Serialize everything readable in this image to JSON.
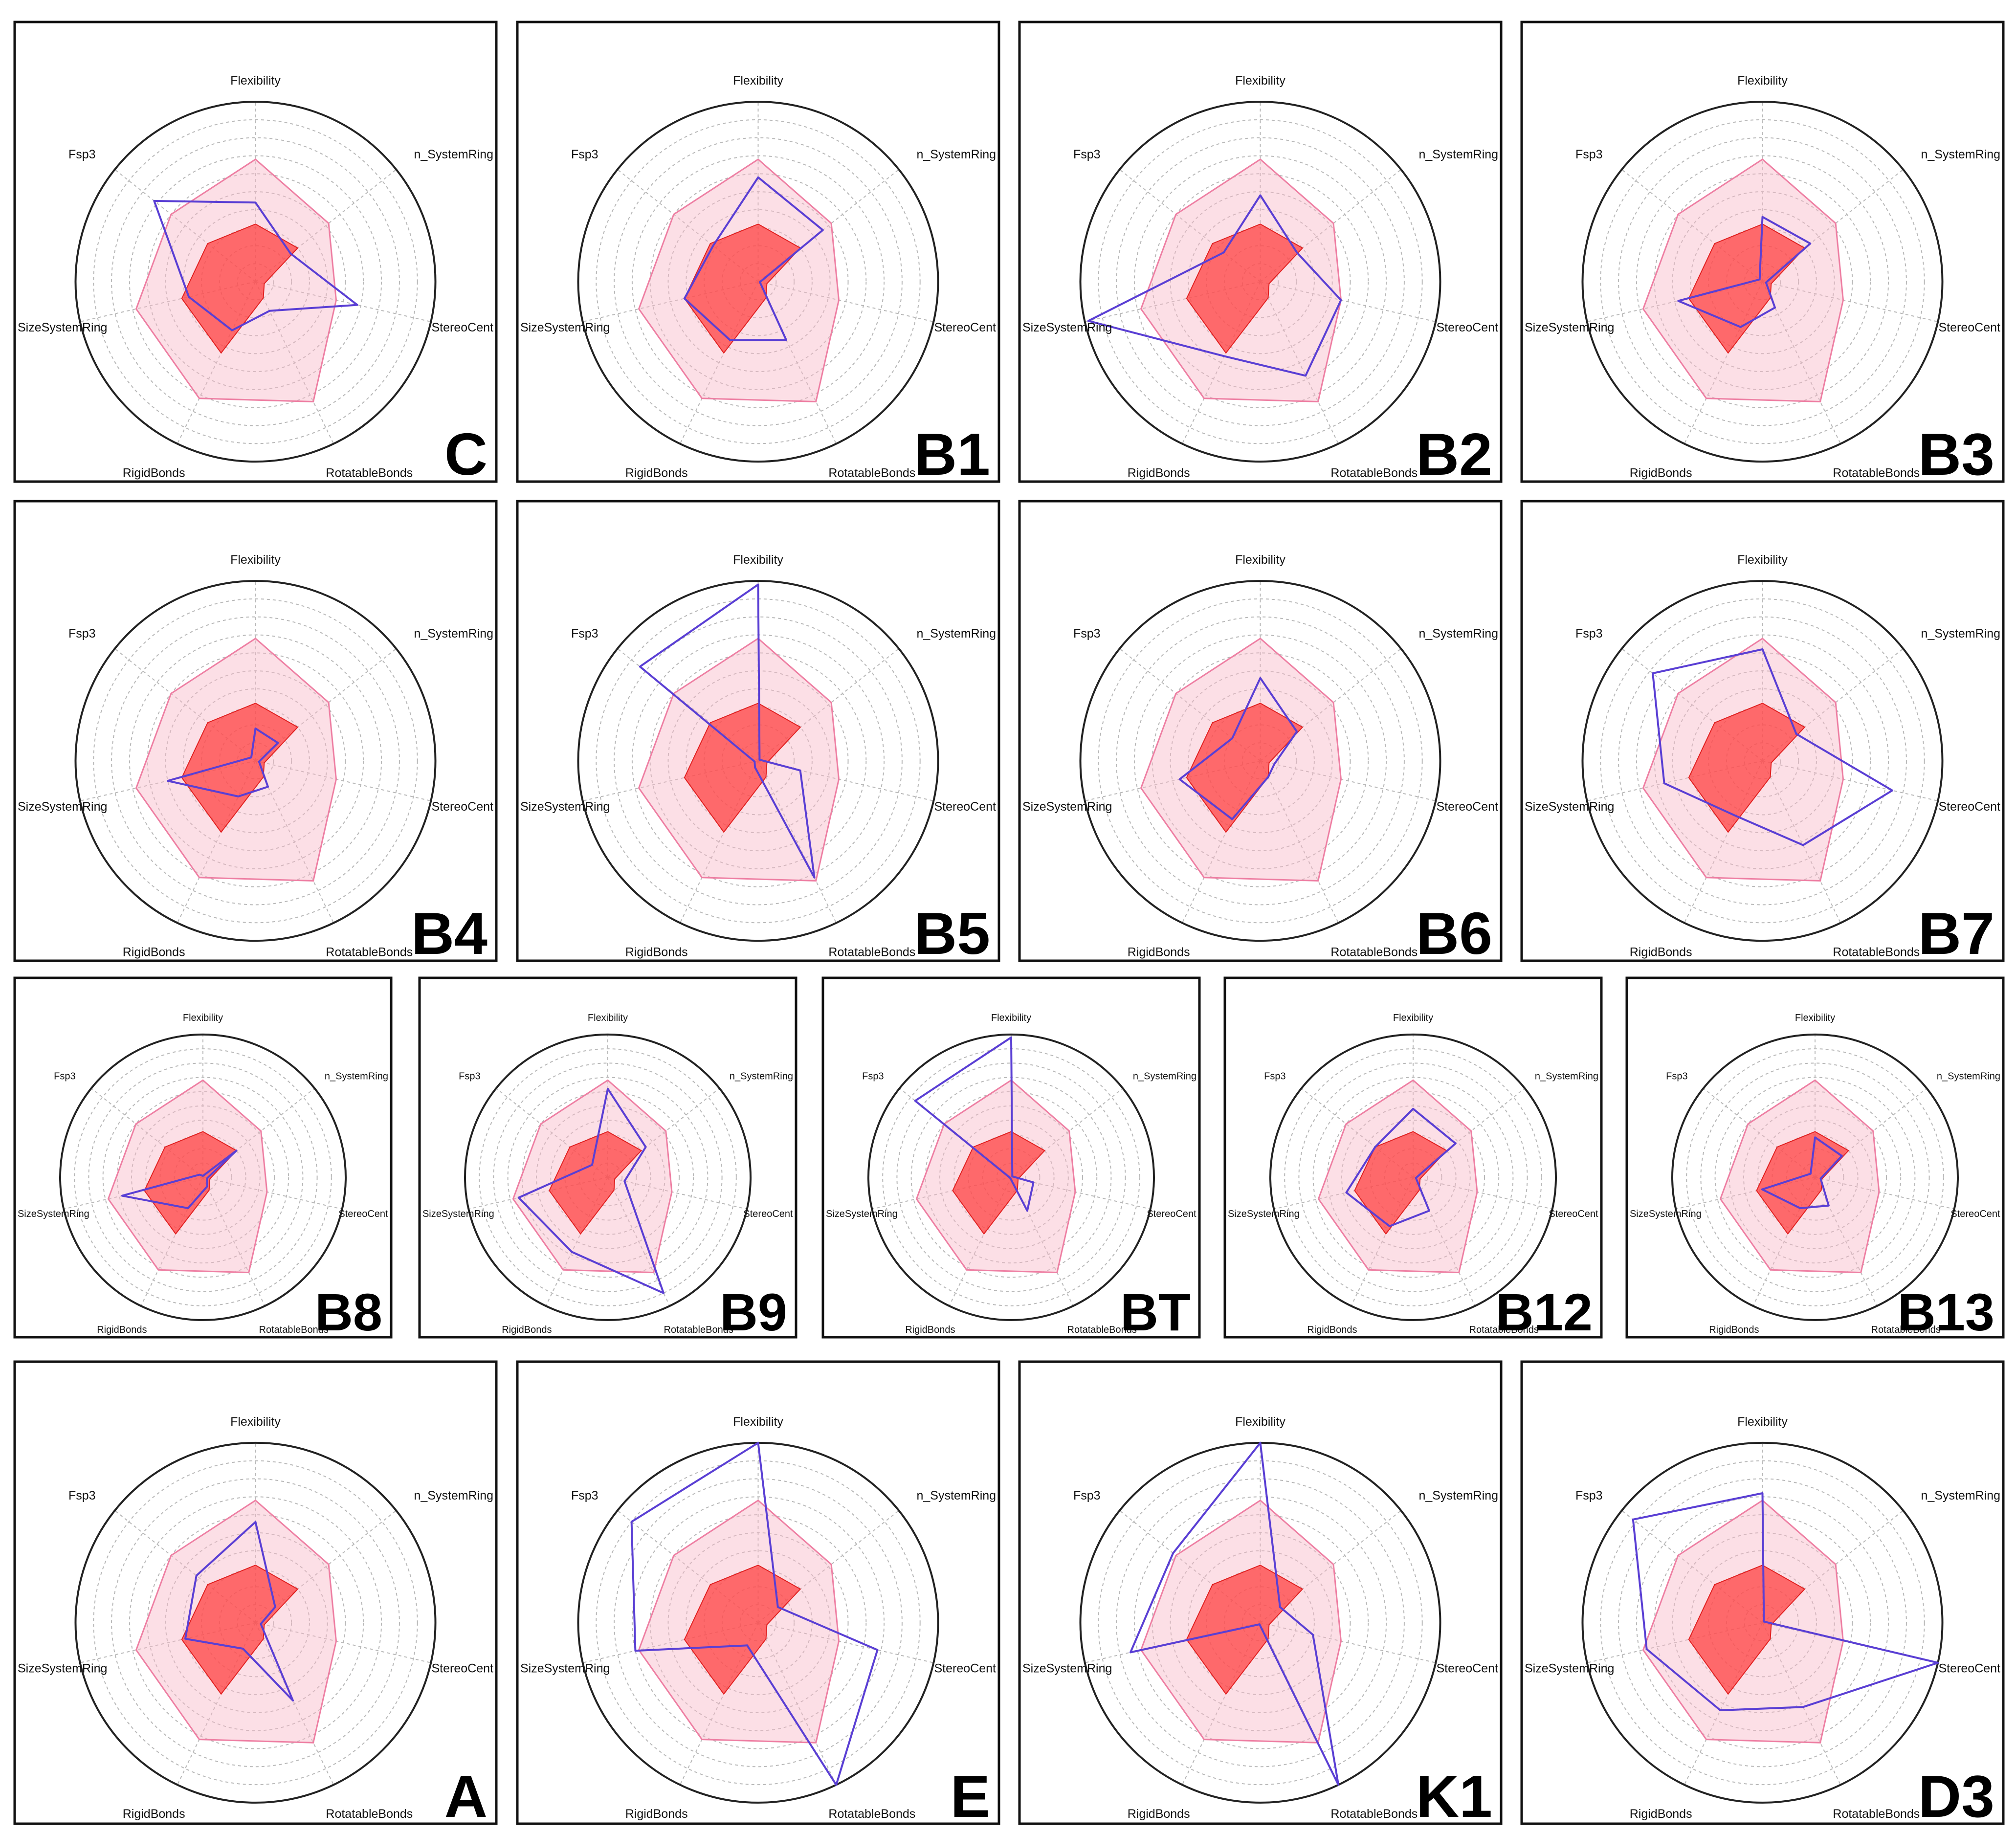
{
  "figure": {
    "description_axes_order": "clockwise from top",
    "colors": {
      "upper_limit_fill": "#f8b7c8",
      "upper_limit_stroke": "#ee7fa3",
      "lower_limit_fill": "#ff3b3b",
      "compound_line": "#5a3fd4",
      "grid": "#b8b8b8",
      "frame": "#111111"
    }
  },
  "chart_data": {
    "type": "radar",
    "axes": [
      "Flexibility",
      "n_SystemRing",
      "StereoCenters",
      "RotatableBonds",
      "RigidBonds",
      "SizeSystemRing",
      "Fsp3"
    ],
    "axis_labels": [
      "Flexibility",
      "n_SystemRing",
      "StereoCent",
      "RotatableBonds",
      "RigidBonds",
      "SizeSystemRing",
      "Fsp3"
    ],
    "rmax": 10,
    "grid_rings": [
      1,
      2,
      3,
      4,
      5,
      6,
      7,
      8,
      9,
      10
    ],
    "upper_limit": [
      6.8,
      5.2,
      4.6,
      7.4,
      7.2,
      6.8,
      6.0
    ],
    "lower_limit": [
      3.2,
      3.0,
      0.5,
      1.0,
      4.4,
      4.2,
      3.4
    ],
    "panels": [
      {
        "label": "C",
        "values": [
          4.4,
          2.5,
          5.8,
          1.8,
          3.0,
          3.8,
          7.2
        ]
      },
      {
        "label": "B1",
        "values": [
          5.8,
          4.6,
          0.1,
          3.6,
          3.6,
          4.2,
          3.2
        ]
      },
      {
        "label": "B2",
        "values": [
          4.8,
          2.6,
          4.6,
          5.8,
          4.6,
          9.8,
          2.6
        ]
      },
      {
        "label": "B3",
        "values": [
          3.6,
          3.4,
          0.2,
          1.6,
          2.8,
          4.8,
          0.2
        ]
      },
      {
        "label": "B4",
        "values": [
          1.8,
          1.6,
          0.2,
          1.6,
          2.2,
          5.0,
          0.3
        ]
      },
      {
        "label": "B5",
        "values": [
          9.8,
          0.1,
          2.4,
          7.2,
          0.4,
          0.2,
          8.4
        ]
      },
      {
        "label": "B6",
        "values": [
          4.6,
          2.6,
          0.8,
          1.0,
          3.6,
          4.6,
          2.0
        ]
      },
      {
        "label": "B7",
        "values": [
          6.2,
          2.4,
          7.4,
          5.2,
          3.4,
          5.6,
          7.8
        ]
      },
      {
        "label": "B8",
        "values": [
          0.1,
          3.0,
          0.3,
          0.7,
          2.4,
          5.8,
          0.3
        ]
      },
      {
        "label": "B9",
        "values": [
          6.2,
          3.4,
          1.2,
          9.0,
          5.8,
          6.4,
          1.4
        ]
      },
      {
        "label": "BT",
        "values": [
          9.8,
          0.1,
          1.6,
          2.6,
          0.1,
          0.1,
          8.6
        ]
      },
      {
        "label": "B12",
        "values": [
          4.8,
          3.8,
          0.2,
          2.6,
          3.8,
          4.8,
          3.4
        ]
      },
      {
        "label": "B13",
        "values": [
          2.8,
          2.4,
          0.4,
          2.2,
          2.4,
          3.8,
          0.4
        ]
      },
      {
        "label": "A",
        "values": [
          5.6,
          1.4,
          0.3,
          4.8,
          1.6,
          4.0,
          4.2
        ]
      },
      {
        "label": "E",
        "values": [
          10.0,
          1.4,
          6.8,
          10.0,
          1.4,
          7.0,
          9.0
        ]
      },
      {
        "label": "K1",
        "values": [
          10.0,
          1.4,
          3.0,
          10.0,
          0.1,
          7.4,
          6.2
        ]
      },
      {
        "label": "D3",
        "values": [
          7.2,
          0.1,
          10.0,
          5.2,
          5.4,
          6.6,
          9.2
        ]
      }
    ]
  }
}
